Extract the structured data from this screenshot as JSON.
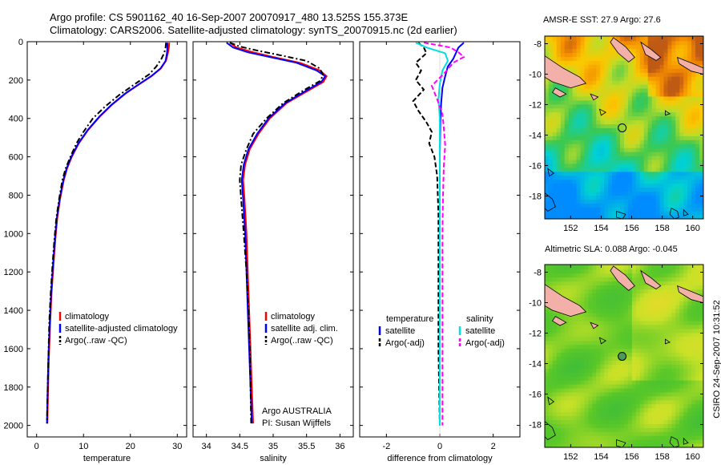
{
  "header": {
    "line1": "Argo profile: CS 5901162_40 16-Sep-2007 20070917_480 13.525S 155.373E",
    "line2": "Climatology: CARS2006. Satellite-adjusted climatology: synTS_20070915.nc (2d earlier)"
  },
  "credit": "CSIRO 24-Sep-2007 10:31:52",
  "colors": {
    "climatology": "#ff0000",
    "satellite": "#0000ff",
    "argo": "#000000",
    "salinity_satellite": "#00e0e0",
    "salinity_argo": "#ff00ff"
  },
  "chart_data": [
    {
      "type": "line",
      "xlabel": "temperature",
      "ylabel": "",
      "xlim": [
        -2,
        32
      ],
      "ylim": [
        2060,
        0
      ],
      "y_reversed": true,
      "xticks": [
        "0",
        "10",
        "20",
        "30"
      ],
      "yticks": [
        "0",
        "200",
        "400",
        "600",
        "800",
        "1000",
        "1200",
        "1400",
        "1600",
        "1800",
        "2000"
      ],
      "legend": [
        "climatology",
        "satellite-adjusted climatology",
        "Argo(..raw -QC)"
      ],
      "series": [
        {
          "name": "climatology",
          "style": "solid",
          "points": [
            [
              28.3,
              5
            ],
            [
              28.2,
              30
            ],
            [
              28.0,
              60
            ],
            [
              27.6,
              100
            ],
            [
              26.5,
              140
            ],
            [
              24.5,
              180
            ],
            [
              22.0,
              220
            ],
            [
              19.0,
              270
            ],
            [
              16.0,
              330
            ],
            [
              13.5,
              390
            ],
            [
              11.0,
              460
            ],
            [
              9.0,
              530
            ],
            [
              7.5,
              600
            ],
            [
              6.5,
              660
            ],
            [
              5.8,
              720
            ],
            [
              5.0,
              820
            ],
            [
              4.4,
              920
            ],
            [
              4.0,
              1030
            ],
            [
              3.6,
              1160
            ],
            [
              3.2,
              1310
            ],
            [
              2.9,
              1460
            ],
            [
              2.6,
              1660
            ],
            [
              2.4,
              1860
            ],
            [
              2.3,
              1990
            ]
          ]
        },
        {
          "name": "satellite-adjusted climatology",
          "style": "solid",
          "points": [
            [
              27.9,
              5
            ],
            [
              27.9,
              30
            ],
            [
              27.8,
              60
            ],
            [
              27.5,
              100
            ],
            [
              26.4,
              140
            ],
            [
              24.4,
              180
            ],
            [
              21.9,
              220
            ],
            [
              18.9,
              270
            ],
            [
              15.9,
              330
            ],
            [
              13.4,
              390
            ],
            [
              10.9,
              460
            ],
            [
              8.9,
              530
            ],
            [
              7.4,
              600
            ],
            [
              6.4,
              660
            ],
            [
              5.7,
              720
            ],
            [
              4.9,
              820
            ],
            [
              4.3,
              920
            ],
            [
              3.9,
              1030
            ],
            [
              3.5,
              1160
            ],
            [
              3.1,
              1310
            ],
            [
              2.8,
              1460
            ],
            [
              2.5,
              1660
            ],
            [
              2.3,
              1860
            ],
            [
              2.2,
              1990
            ]
          ]
        },
        {
          "name": "Argo(..raw -QC)",
          "style": "dashdot",
          "points": [
            [
              27.6,
              5
            ],
            [
              27.5,
              30
            ],
            [
              27.2,
              60
            ],
            [
              26.6,
              90
            ],
            [
              25.5,
              130
            ],
            [
              24.0,
              170
            ],
            [
              21.0,
              220
            ],
            [
              17.5,
              280
            ],
            [
              14.5,
              340
            ],
            [
              12.0,
              400
            ],
            [
              10.0,
              470
            ],
            [
              8.5,
              530
            ],
            [
              7.2,
              600
            ],
            [
              6.2,
              660
            ],
            [
              5.5,
              720
            ],
            [
              4.8,
              820
            ],
            [
              4.2,
              920
            ],
            [
              3.8,
              1030
            ],
            [
              3.4,
              1160
            ],
            [
              3.0,
              1310
            ],
            [
              2.7,
              1460
            ],
            [
              2.5,
              1660
            ],
            [
              2.3,
              1860
            ],
            [
              2.2,
              1990
            ]
          ]
        }
      ]
    },
    {
      "type": "line",
      "xlabel": "salinity",
      "ylabel": "",
      "xlim": [
        33.8,
        36.2
      ],
      "ylim": [
        2060,
        0
      ],
      "y_reversed": true,
      "xticks": [
        "34",
        "34.5",
        "35",
        "35.5",
        "36"
      ],
      "yticks": [],
      "legend": [
        "climatology",
        "satellite adj. clim.",
        "Argo(..raw -QC)"
      ],
      "annotation": [
        "Argo AUSTRALIA",
        "PI: Susan Wijffels"
      ],
      "series": [
        {
          "name": "climatology",
          "style": "solid",
          "points": [
            [
              34.35,
              5
            ],
            [
              34.45,
              30
            ],
            [
              34.7,
              55
            ],
            [
              35.0,
              80
            ],
            [
              35.4,
              110
            ],
            [
              35.7,
              150
            ],
            [
              35.8,
              180
            ],
            [
              35.75,
              210
            ],
            [
              35.5,
              260
            ],
            [
              35.2,
              320
            ],
            [
              34.95,
              400
            ],
            [
              34.78,
              480
            ],
            [
              34.65,
              560
            ],
            [
              34.58,
              640
            ],
            [
              34.55,
              720
            ],
            [
              34.57,
              820
            ],
            [
              34.6,
              1000
            ],
            [
              34.62,
              1200
            ],
            [
              34.64,
              1400
            ],
            [
              34.66,
              1600
            ],
            [
              34.68,
              1800
            ],
            [
              34.7,
              1990
            ]
          ]
        },
        {
          "name": "satellite adj. clim.",
          "style": "solid",
          "points": [
            [
              34.3,
              5
            ],
            [
              34.4,
              30
            ],
            [
              34.62,
              55
            ],
            [
              34.95,
              80
            ],
            [
              35.35,
              110
            ],
            [
              35.65,
              150
            ],
            [
              35.78,
              180
            ],
            [
              35.72,
              210
            ],
            [
              35.47,
              260
            ],
            [
              35.18,
              320
            ],
            [
              34.93,
              400
            ],
            [
              34.76,
              480
            ],
            [
              34.63,
              560
            ],
            [
              34.56,
              640
            ],
            [
              34.53,
              720
            ],
            [
              34.55,
              820
            ],
            [
              34.58,
              1000
            ],
            [
              34.6,
              1200
            ],
            [
              34.62,
              1400
            ],
            [
              34.64,
              1600
            ],
            [
              34.66,
              1800
            ],
            [
              34.68,
              1990
            ]
          ]
        },
        {
          "name": "Argo(..raw -QC)",
          "style": "dashdot",
          "points": [
            [
              34.35,
              5
            ],
            [
              34.5,
              25
            ],
            [
              34.75,
              45
            ],
            [
              35.1,
              70
            ],
            [
              35.5,
              100
            ],
            [
              35.7,
              140
            ],
            [
              35.75,
              175
            ],
            [
              35.7,
              205
            ],
            [
              35.45,
              255
            ],
            [
              35.15,
              320
            ],
            [
              34.9,
              400
            ],
            [
              34.7,
              480
            ],
            [
              34.6,
              560
            ],
            [
              34.52,
              640
            ],
            [
              34.5,
              720
            ],
            [
              34.52,
              820
            ],
            [
              34.56,
              1000
            ],
            [
              34.6,
              1200
            ],
            [
              34.63,
              1400
            ],
            [
              34.65,
              1600
            ],
            [
              34.66,
              1800
            ],
            [
              34.67,
              1990
            ]
          ]
        }
      ]
    },
    {
      "type": "line",
      "xlabel": "difference from climatology",
      "ylabel": "",
      "xlim": [
        -3,
        3
      ],
      "ylim": [
        2060,
        0
      ],
      "y_reversed": true,
      "xticks": [
        "-2",
        "0",
        "2"
      ],
      "yticks": [],
      "legend_left": [
        "temperature",
        "satellite",
        "Argo(-adj)"
      ],
      "legend_right": [
        "salinity",
        "satellite",
        "Argo(-adj)"
      ],
      "series": [
        {
          "name": "temperature satellite",
          "style": "solid",
          "points": [
            [
              0.9,
              5
            ],
            [
              0.7,
              30
            ],
            [
              0.6,
              60
            ],
            [
              0.5,
              90
            ],
            [
              0.3,
              130
            ],
            [
              0.2,
              180
            ],
            [
              0.1,
              240
            ],
            [
              0.05,
              320
            ],
            [
              0.02,
              420
            ],
            [
              0.0,
              600
            ],
            [
              0.0,
              800
            ],
            [
              0.0,
              1000
            ],
            [
              0.0,
              1400
            ],
            [
              0.0,
              2000
            ]
          ]
        },
        {
          "name": "temperature Argo(-adj)",
          "style": "dashed",
          "points": [
            [
              -0.8,
              5
            ],
            [
              -0.6,
              30
            ],
            [
              -0.5,
              60
            ],
            [
              -0.9,
              110
            ],
            [
              -0.7,
              150
            ],
            [
              -0.9,
              200
            ],
            [
              -0.6,
              250
            ],
            [
              -1.0,
              310
            ],
            [
              -0.8,
              360
            ],
            [
              -0.5,
              420
            ],
            [
              -0.3,
              470
            ],
            [
              -0.4,
              530
            ],
            [
              -0.2,
              600
            ],
            [
              -0.1,
              700
            ],
            [
              -0.05,
              900
            ],
            [
              -0.05,
              1200
            ],
            [
              -0.05,
              1600
            ],
            [
              0.0,
              2000
            ]
          ]
        },
        {
          "name": "salinity satellite",
          "style": "solid",
          "points": [
            [
              -0.9,
              5
            ],
            [
              -0.5,
              30
            ],
            [
              0.2,
              60
            ],
            [
              0.3,
              100
            ],
            [
              0.1,
              150
            ],
            [
              0.0,
              220
            ],
            [
              -0.05,
              300
            ],
            [
              0.0,
              400
            ],
            [
              0.0,
              600
            ],
            [
              0.0,
              1000
            ],
            [
              0.0,
              1500
            ],
            [
              0.0,
              2000
            ]
          ]
        },
        {
          "name": "salinity Argo(-adj)",
          "style": "dashed",
          "points": [
            [
              -0.6,
              5
            ],
            [
              0.4,
              30
            ],
            [
              0.7,
              55
            ],
            [
              0.9,
              80
            ],
            [
              0.5,
              110
            ],
            [
              0.2,
              160
            ],
            [
              -0.3,
              230
            ],
            [
              -0.1,
              300
            ],
            [
              0.1,
              380
            ],
            [
              0.15,
              450
            ],
            [
              0.2,
              540
            ],
            [
              0.15,
              650
            ],
            [
              0.12,
              800
            ],
            [
              0.1,
              1000
            ],
            [
              0.1,
              1400
            ],
            [
              0.1,
              2000
            ]
          ]
        }
      ]
    },
    {
      "type": "heatmap",
      "title": "AMSR-E SST: 27.9 Argo: 27.6",
      "xlim": [
        150.3,
        160.7
      ],
      "ylim": [
        -19.5,
        -7.5
      ],
      "xticks": [
        "152",
        "154",
        "156",
        "158",
        "160"
      ],
      "yticks": [
        "-8",
        "-10",
        "-12",
        "-14",
        "-16",
        "-18"
      ],
      "marker": {
        "lon": 155.373,
        "lat": -13.525
      }
    },
    {
      "type": "heatmap",
      "title": "Altimetric SLA: 0.088 Argo: -0.045",
      "xlim": [
        150.3,
        160.7
      ],
      "ylim": [
        -19.5,
        -7.5
      ],
      "xticks": [
        "152",
        "154",
        "156",
        "158",
        "160"
      ],
      "yticks": [
        "-8",
        "-10",
        "-12",
        "-14",
        "-16",
        "-18"
      ],
      "marker": {
        "lon": 155.373,
        "lat": -13.525
      }
    }
  ]
}
